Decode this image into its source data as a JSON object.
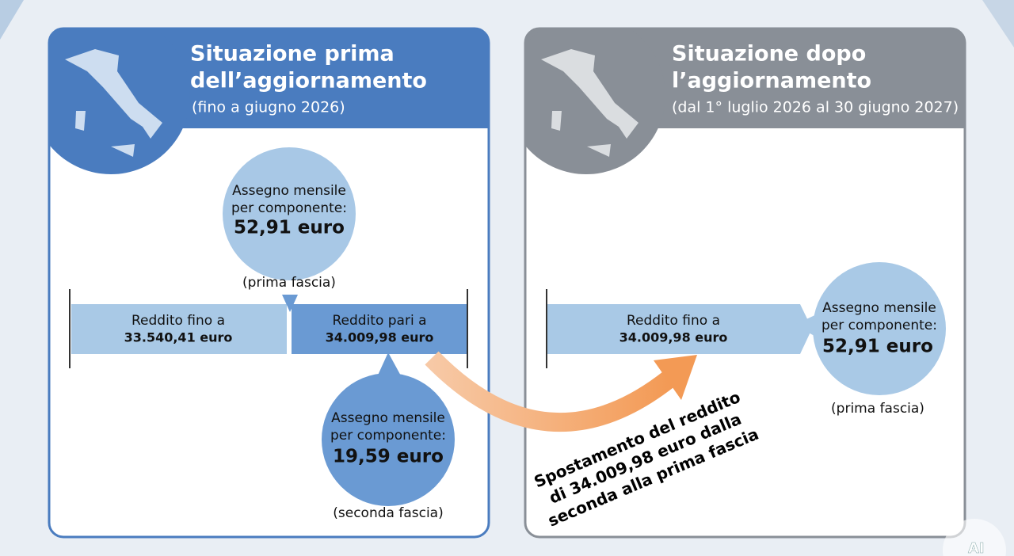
{
  "left": {
    "title": [
      "Situazione prima",
      "dell’aggiornamento"
    ],
    "subtitle": "(fino a giugno 2026)",
    "top_circle": {
      "lines": [
        "Assegno mensile",
        "per componente:"
      ],
      "amount": "52,91 euro",
      "band": "(prima fascia)"
    },
    "bar_left": {
      "lines": [
        "Reddito fino a",
        "33.540,41 euro"
      ]
    },
    "bar_right": {
      "lines": [
        "Reddito pari a",
        "34.009,98 euro"
      ]
    },
    "bottom_circle": {
      "lines": [
        "Assegno mensile",
        "per componente:"
      ],
      "amount": "19,59 euro",
      "band": "(seconda fascia)"
    }
  },
  "right": {
    "title": [
      "Situazione dopo",
      "l’aggiornamento"
    ],
    "subtitle": "(dal 1° luglio 2026 al 30 giugno 2027)",
    "bar": {
      "lines": [
        "Reddito fino a",
        "34.009,98 euro"
      ]
    },
    "circle": {
      "lines": [
        "Assegno mensile",
        "per componente:"
      ],
      "amount": "52,91 euro",
      "band": "(prima fascia)"
    }
  },
  "arrow_text": [
    "Spostamento del reddito",
    "di 34.009,98 euro dalla",
    "seconda alla prima fascia"
  ],
  "watermark": "AI"
}
